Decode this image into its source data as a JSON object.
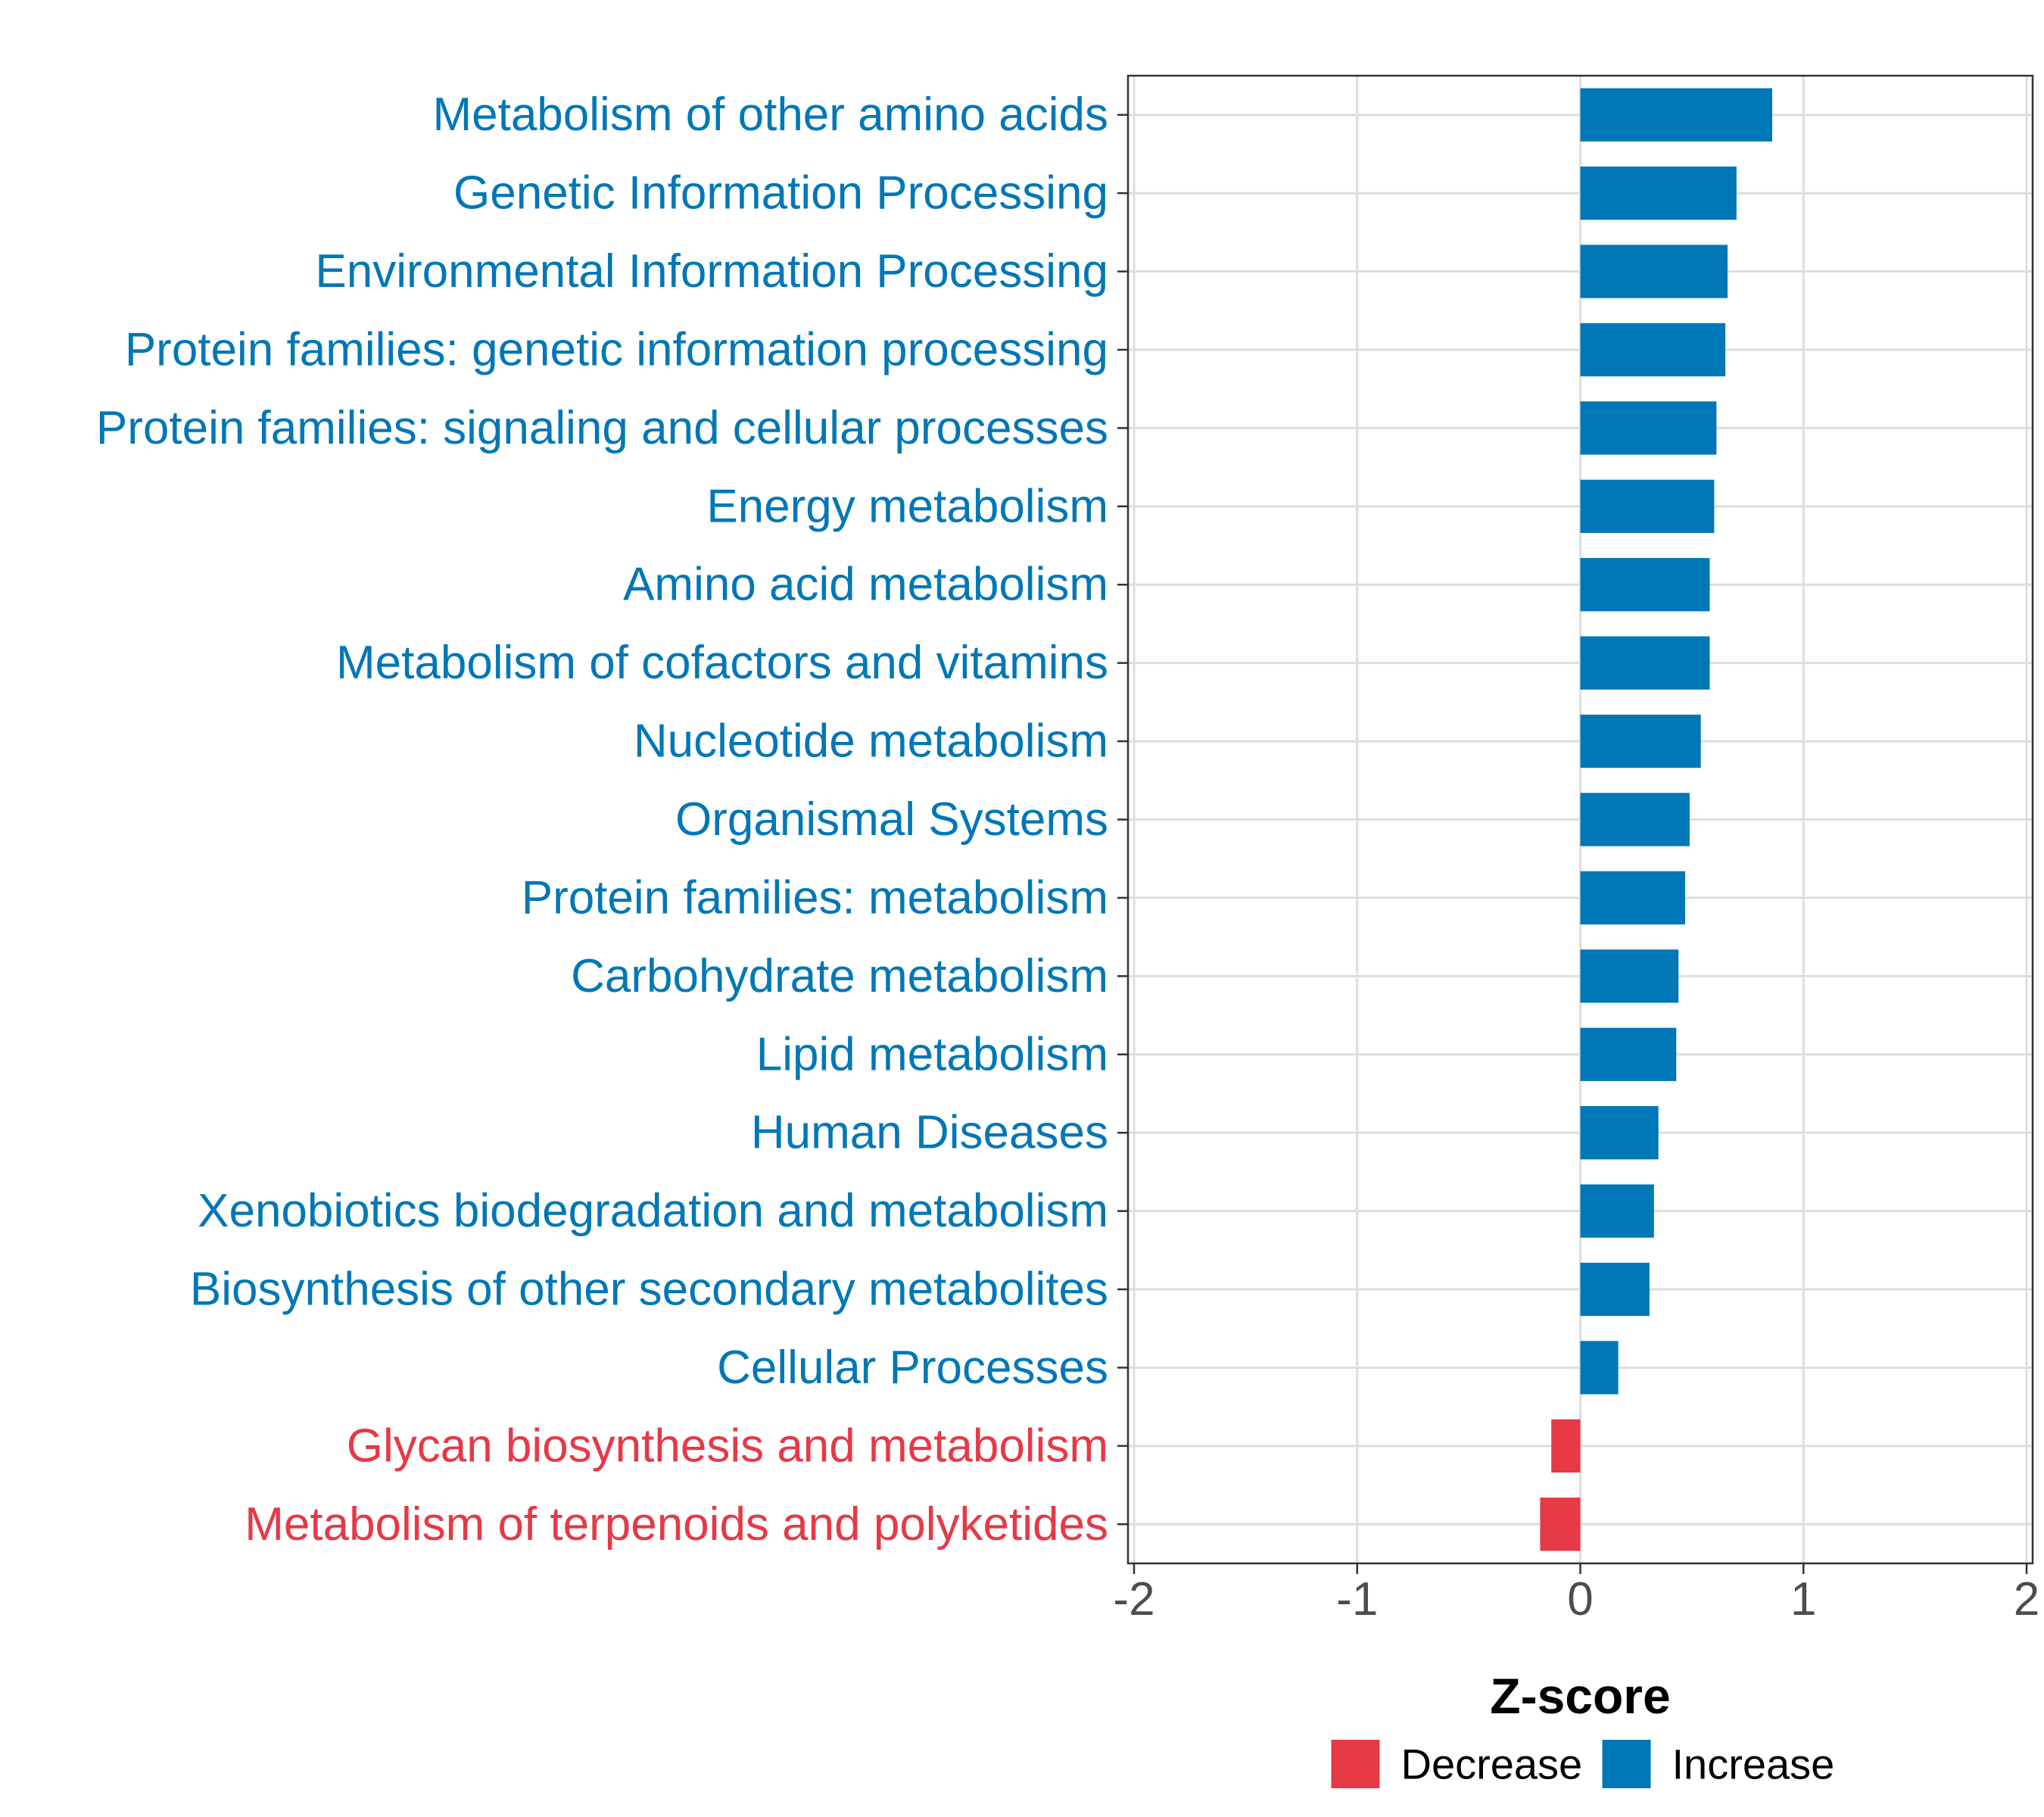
{
  "chart_data": {
    "type": "bar",
    "orientation": "horizontal",
    "title": "",
    "xlabel": "Z-score",
    "ylabel": "",
    "xlim": [
      -2,
      2
    ],
    "xticks": [
      -2,
      -1,
      0,
      1,
      2
    ],
    "xtick_labels": [
      "-2",
      "-1",
      "0",
      "1",
      "2"
    ],
    "grid": true,
    "categories": [
      "Metabolism of other amino acids",
      "Genetic Information Processing",
      "Environmental Information Processing",
      "Protein families: genetic information processing",
      "Protein families: signaling and cellular processes",
      "Energy metabolism",
      "Amino acid metabolism",
      "Metabolism of cofactors and vitamins",
      "Nucleotide metabolism",
      "Organismal Systems",
      "Protein families: metabolism",
      "Carbohydrate metabolism",
      "Lipid metabolism",
      "Human Diseases",
      "Xenobiotics biodegradation and metabolism",
      "Biosynthesis of other secondary metabolites",
      "Cellular Processes",
      "Glycan biosynthesis and metabolism",
      "Metabolism of terpenoids and polyketides"
    ],
    "values": [
      0.86,
      0.7,
      0.66,
      0.65,
      0.61,
      0.6,
      0.58,
      0.58,
      0.54,
      0.49,
      0.47,
      0.44,
      0.43,
      0.35,
      0.33,
      0.31,
      0.17,
      -0.13,
      -0.18
    ],
    "groups": [
      "Increase",
      "Increase",
      "Increase",
      "Increase",
      "Increase",
      "Increase",
      "Increase",
      "Increase",
      "Increase",
      "Increase",
      "Increase",
      "Increase",
      "Increase",
      "Increase",
      "Increase",
      "Increase",
      "Increase",
      "Decrease",
      "Decrease"
    ],
    "legend": {
      "position": "bottom",
      "entries": [
        {
          "label": "Decrease",
          "color": "#E63946"
        },
        {
          "label": "Increase",
          "color": "#0077B6"
        }
      ]
    },
    "colors": {
      "Decrease": "#E63946",
      "Increase": "#0077B6"
    }
  }
}
